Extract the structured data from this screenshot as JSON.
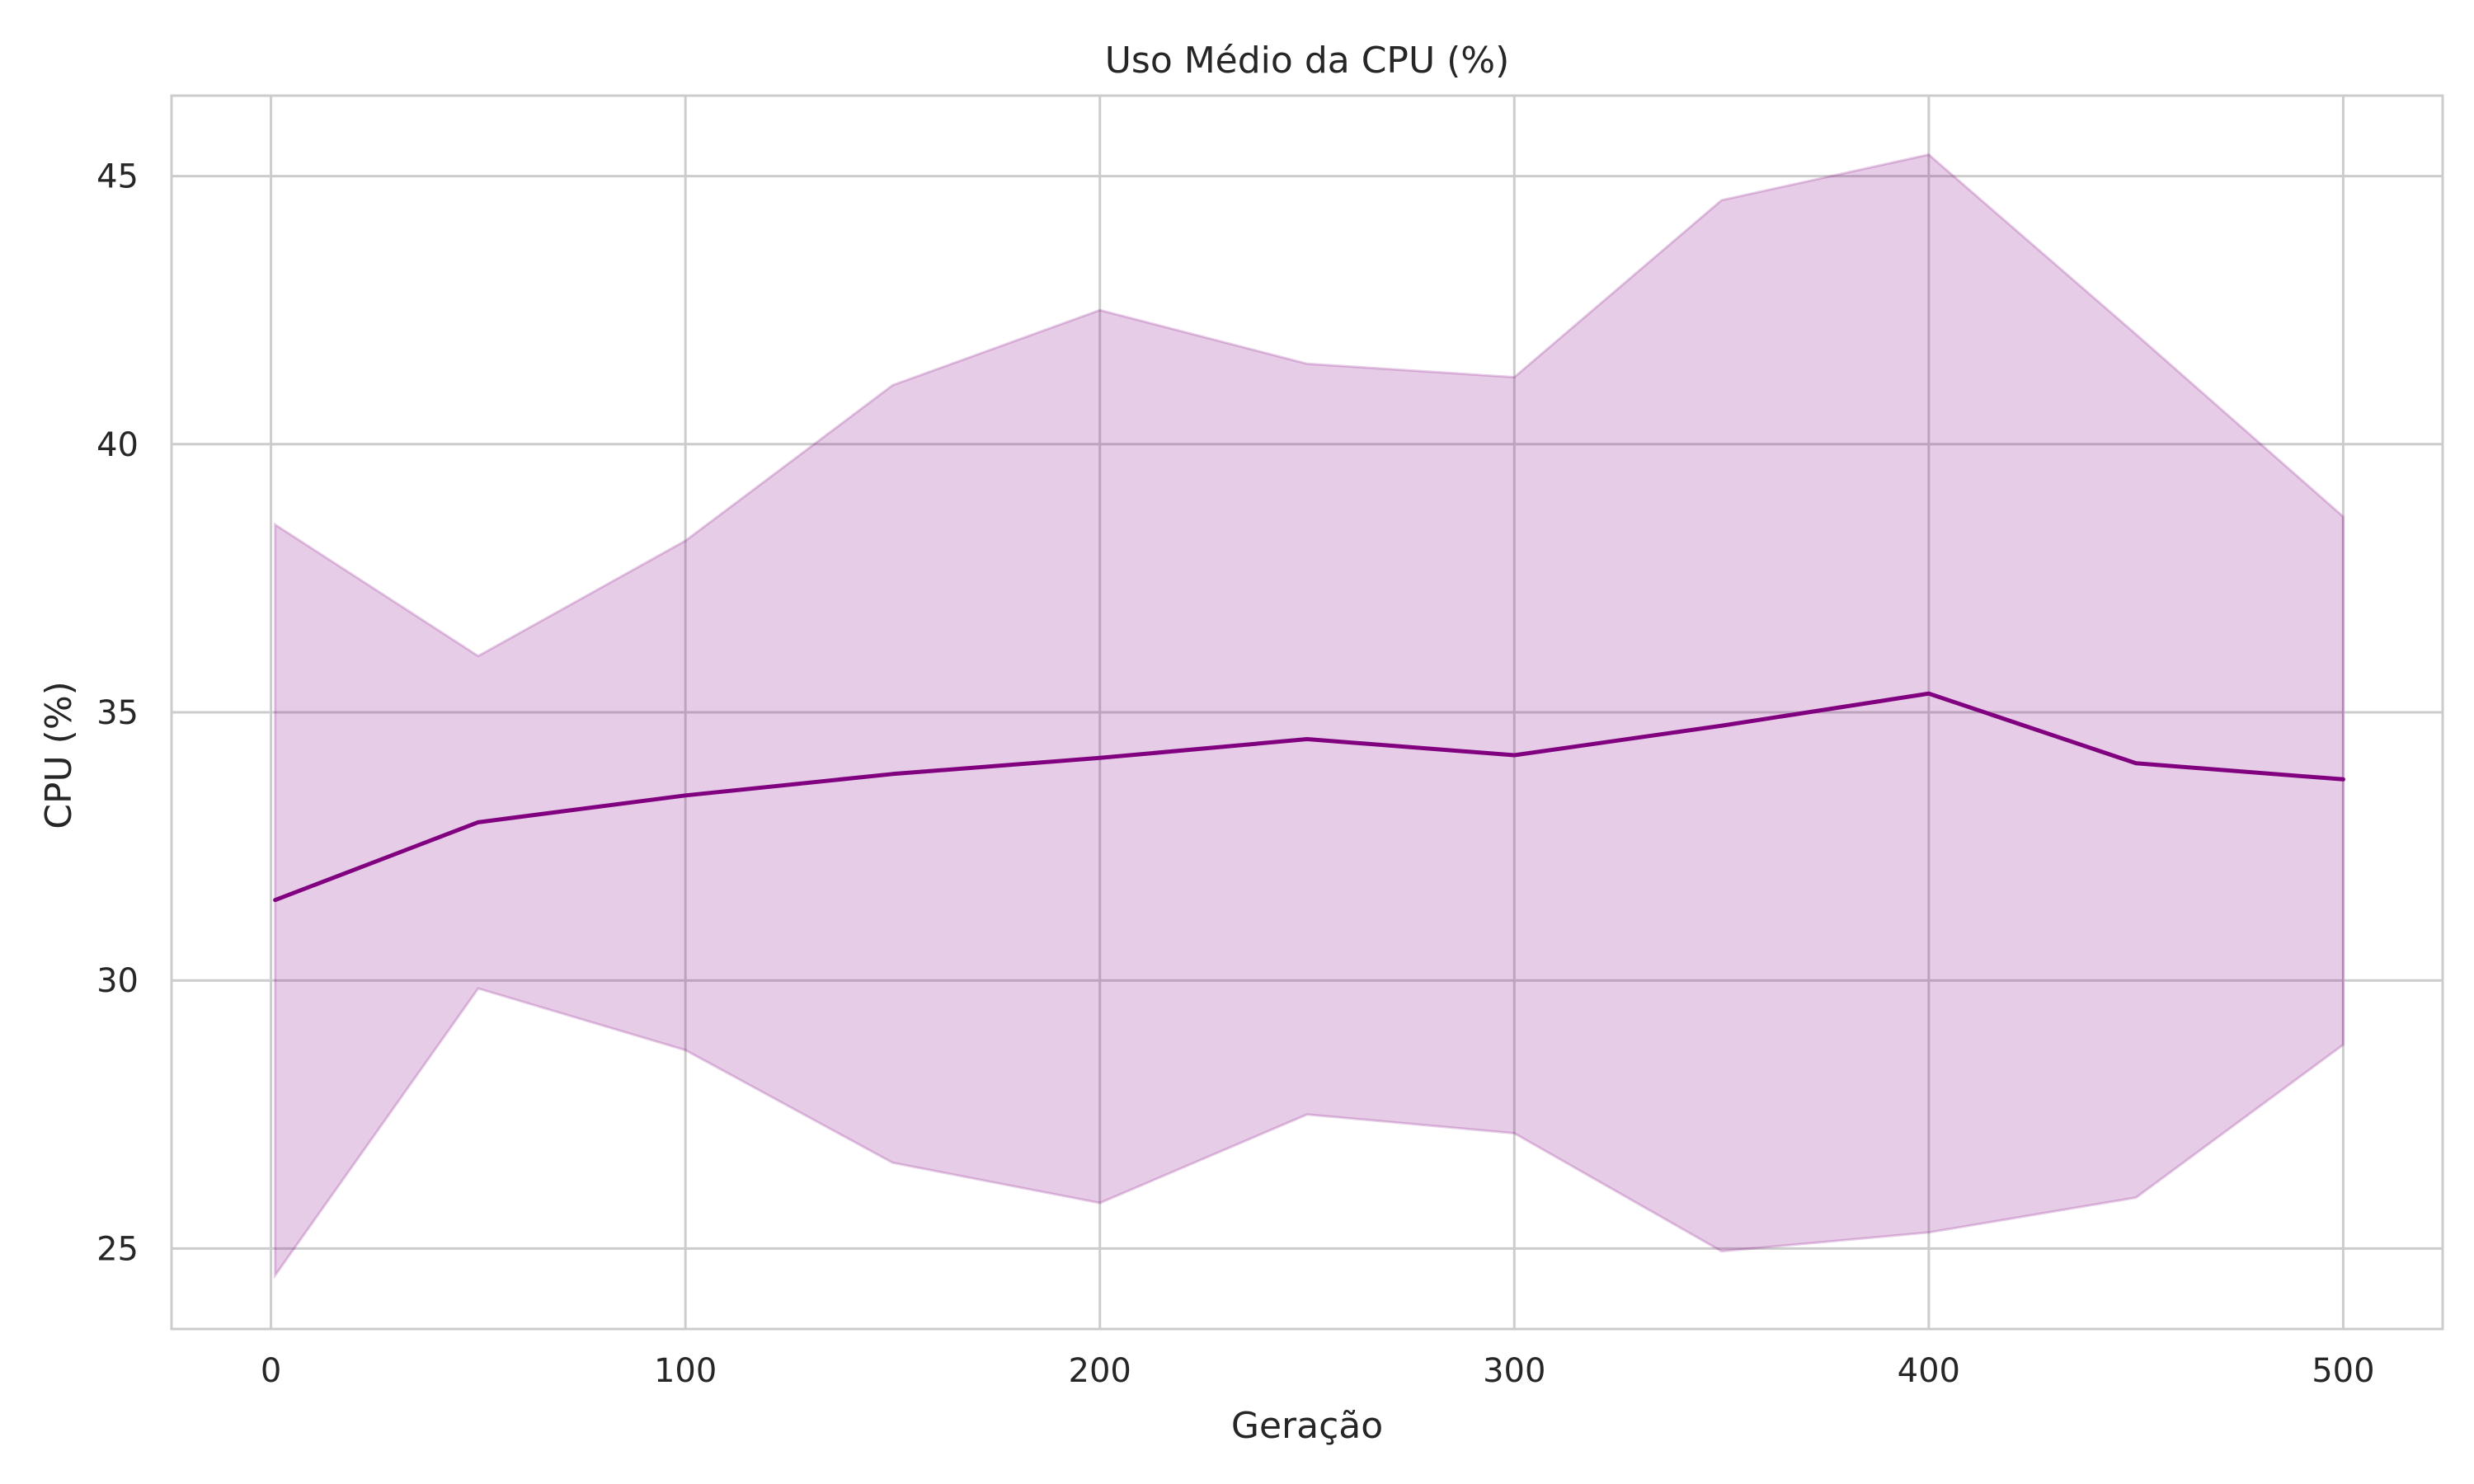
{
  "chart_data": {
    "type": "line",
    "title": "Uso Médio da CPU (%)",
    "xlabel": "Geração",
    "ylabel": "CPU (%)",
    "xlim": [
      -24,
      524
    ],
    "ylim": [
      23.5,
      46.5
    ],
    "x_ticks": [
      0,
      100,
      200,
      300,
      400,
      500
    ],
    "x_tick_labels": [
      "0",
      "100",
      "200",
      "300",
      "400",
      "500"
    ],
    "y_ticks": [
      25,
      30,
      35,
      40,
      45
    ],
    "y_tick_labels": [
      "25",
      "30",
      "35",
      "40",
      "45"
    ],
    "grid": true,
    "x": [
      1,
      50,
      100,
      150,
      200,
      250,
      300,
      350,
      400,
      450,
      500
    ],
    "series": [
      {
        "values": [
          31.5,
          32.95,
          33.45,
          33.85,
          34.15,
          34.5,
          34.2,
          34.75,
          35.35,
          34.05,
          33.75
        ],
        "lower": [
          24.5,
          29.85,
          28.7,
          26.6,
          25.85,
          27.5,
          27.15,
          24.95,
          25.3,
          25.95,
          28.8
        ],
        "upper": [
          38.5,
          36.05,
          38.2,
          41.1,
          42.5,
          41.5,
          41.25,
          44.55,
          45.4,
          42.05,
          38.65
        ],
        "color": "#800080",
        "band_color": "#800080",
        "band_opacity": 0.2
      }
    ]
  }
}
